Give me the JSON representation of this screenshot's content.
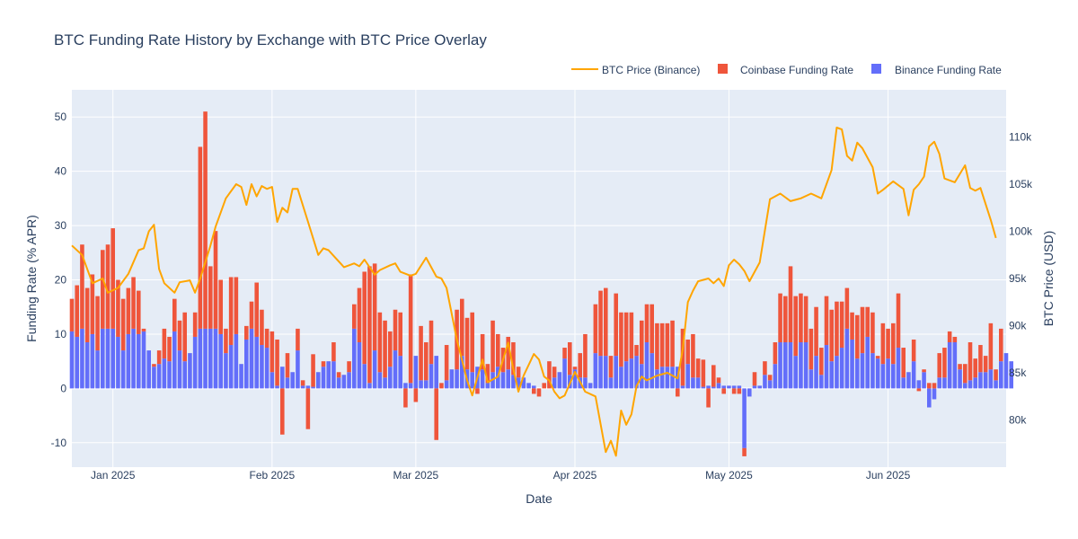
{
  "chart_data": {
    "type": "bar+line",
    "title": "BTC Funding Rate History by Exchange with BTC Price Overlay",
    "xlabel": "Date",
    "ylabel": "Funding Rate (% APR)",
    "y2label": "BTC Price (USD)",
    "x_range": [
      "2024-12-24",
      "2025-06-24"
    ],
    "y_range": [
      -14.5,
      55
    ],
    "y2_range": [
      75000,
      115000
    ],
    "x_ticks": [
      {
        "date": "2025-01-01",
        "label": "Jan 2025"
      },
      {
        "date": "2025-02-01",
        "label": "Feb 2025"
      },
      {
        "date": "2025-03-01",
        "label": "Mar 2025"
      },
      {
        "date": "2025-04-01",
        "label": "Apr 2025"
      },
      {
        "date": "2025-05-01",
        "label": "May 2025"
      },
      {
        "date": "2025-06-01",
        "label": "Jun 2025"
      }
    ],
    "y_ticks": [
      -10,
      0,
      10,
      20,
      30,
      40,
      50
    ],
    "y2_ticks": [
      {
        "value": 80000,
        "label": "80k"
      },
      {
        "value": 85000,
        "label": "85k"
      },
      {
        "value": 90000,
        "label": "90k"
      },
      {
        "value": 95000,
        "label": "95k"
      },
      {
        "value": 100000,
        "label": "100k"
      },
      {
        "value": 105000,
        "label": "105k"
      },
      {
        "value": 110000,
        "label": "110k"
      }
    ],
    "grid": true,
    "legend_position": "top-right",
    "bar_mode": "relative",
    "series": [
      {
        "name": "Binance Funding Rate",
        "kind": "bar",
        "color": "#636efa",
        "start_date": "2024-12-24",
        "values": [
          10.5,
          9.5,
          11.0,
          8.5,
          10.0,
          7.0,
          11.0,
          11.0,
          11.0,
          9.5,
          7.0,
          10.0,
          11.0,
          10.0,
          10.5,
          7.0,
          4.0,
          4.5,
          5.5,
          5.0,
          10.5,
          7.0,
          5.0,
          6.5,
          9.5,
          11.0,
          11.0,
          11.0,
          11.0,
          10.0,
          6.5,
          8.0,
          10.0,
          4.5,
          9.0,
          11.0,
          9.5,
          8.0,
          7.5,
          3.0,
          0.5,
          4.0,
          2.0,
          3.0,
          7.0,
          0.5,
          0.5,
          0.3,
          3.0,
          4.0,
          5.0,
          5.0,
          2.0,
          2.5,
          3.0,
          11.0,
          8.5,
          4.5,
          1.0,
          7.0,
          3.0,
          2.0,
          4.0,
          7.0,
          6.0,
          1.0,
          1.0,
          6.0,
          1.5,
          1.5,
          4.5,
          6.0,
          0.0,
          1.5,
          3.5,
          3.5,
          6.0,
          3.5,
          3.0,
          4.0,
          3.5,
          1.0,
          3.0,
          4.0,
          3.0,
          3.5,
          2.5,
          2.0,
          2.0,
          1.0,
          0.5,
          0.0,
          0.0,
          0.0,
          2.0,
          3.0,
          5.5,
          2.5,
          3.5,
          2.0,
          2.0,
          1.0,
          6.5,
          6.0,
          6.0,
          2.0,
          6.0,
          4.0,
          5.0,
          5.5,
          6.0,
          4.5,
          8.5,
          6.5,
          3.5,
          4.0,
          4.0,
          4.0,
          4.0,
          0.5,
          4.5,
          2.0,
          2.0,
          0.3,
          0.5,
          0.3,
          1.0,
          0.5,
          0.5,
          0.5,
          0.5,
          -11.0,
          -1.5,
          0.5,
          0.5,
          2.5,
          1.5,
          4.5,
          8.5,
          8.5,
          8.5,
          6.0,
          8.5,
          8.5,
          3.5,
          6.0,
          2.5,
          8.0,
          5.0,
          6.0,
          7.5,
          11.0,
          9.0,
          5.5,
          6.5,
          9.5,
          6.5,
          5.5,
          4.5,
          5.5,
          4.5,
          7.5,
          2.0,
          3.0,
          5.0,
          1.5,
          3.0,
          -3.5,
          -2.0,
          2.0,
          2.0,
          8.5,
          8.5,
          3.5,
          1.0,
          1.5,
          2.0,
          3.0,
          3.0,
          3.5,
          1.5,
          5.0,
          6.5,
          5.0
        ],
        "note": "values in % APR"
      },
      {
        "name": "Coinbase Funding Rate",
        "kind": "bar",
        "color": "#ef553b",
        "start_date": "2024-12-24",
        "values": [
          6.0,
          9.5,
          15.5,
          10.0,
          11.0,
          10.0,
          14.5,
          15.5,
          18.5,
          10.5,
          9.5,
          8.5,
          9.5,
          8.0,
          0.5,
          0.0,
          0.5,
          2.5,
          5.5,
          4.5,
          6.0,
          5.5,
          9.0,
          0.0,
          4.5,
          33.5,
          40.0,
          11.5,
          18.0,
          10.0,
          4.5,
          12.5,
          10.5,
          0.0,
          2.5,
          5.0,
          10.0,
          6.5,
          3.5,
          7.5,
          8.5,
          -8.5,
          4.5,
          0.0,
          4.0,
          1.0,
          -7.5,
          6.0,
          0.0,
          1.0,
          0.0,
          3.5,
          1.0,
          0.0,
          2.0,
          4.5,
          10.0,
          17.0,
          21.5,
          16.0,
          11.0,
          10.5,
          6.5,
          7.5,
          8.0,
          -3.5,
          20.0,
          -2.5,
          10.0,
          7.0,
          8.0,
          -9.5,
          1.0,
          6.5,
          0.0,
          11.0,
          10.5,
          9.5,
          11.0,
          -1.0,
          6.5,
          3.5,
          9.5,
          6.0,
          4.5,
          6.0,
          6.0,
          2.0,
          0.0,
          0.0,
          -1.0,
          -1.5,
          1.0,
          5.0,
          2.0,
          0.0,
          2.0,
          6.0,
          0.5,
          4.5,
          8.0,
          0.0,
          9.0,
          12.0,
          12.5,
          4.0,
          11.5,
          10.0,
          9.0,
          8.5,
          2.0,
          8.0,
          7.0,
          9.0,
          8.5,
          8.0,
          8.0,
          8.5,
          -1.5,
          10.5,
          4.5,
          8.0,
          3.5,
          5.0,
          -3.5,
          4.0,
          1.0,
          -1.0,
          0.0,
          -1.0,
          -1.0,
          -1.5,
          0.0,
          2.5,
          0.0,
          2.5,
          1.0,
          4.0,
          9.0,
          8.5,
          14.0,
          11.0,
          9.0,
          8.5,
          7.5,
          9.0,
          5.0,
          9.0,
          9.5,
          10.0,
          8.5,
          7.5,
          5.0,
          8.0,
          8.5,
          5.5,
          7.5,
          0.5,
          7.5,
          5.5,
          7.5,
          10.0,
          5.5,
          0.0,
          4.0,
          -0.5,
          0.5,
          1.0,
          1.0,
          4.5,
          5.5,
          2.0,
          1.0,
          1.0,
          3.5,
          7.0,
          3.5,
          5.0,
          3.0,
          8.5,
          2.0,
          6.0
        ],
        "note": "values in % APR"
      },
      {
        "name": "BTC Price (Binance)",
        "kind": "line",
        "color": "#ffa500",
        "points": [
          {
            "x": "2024-12-24",
            "y": 98500
          },
          {
            "x": "2024-12-26",
            "y": 97500
          },
          {
            "x": "2024-12-28",
            "y": 94500
          },
          {
            "x": "2024-12-30",
            "y": 95000
          },
          {
            "x": "2024-12-31",
            "y": 93500
          },
          {
            "x": "2025-01-02",
            "y": 94000
          },
          {
            "x": "2025-01-04",
            "y": 95500
          },
          {
            "x": "2025-01-06",
            "y": 98000
          },
          {
            "x": "2025-01-07",
            "y": 98200
          },
          {
            "x": "2025-01-08",
            "y": 100000
          },
          {
            "x": "2025-01-09",
            "y": 100700
          },
          {
            "x": "2025-01-10",
            "y": 96000
          },
          {
            "x": "2025-01-11",
            "y": 94500
          },
          {
            "x": "2025-01-13",
            "y": 93500
          },
          {
            "x": "2025-01-14",
            "y": 94600
          },
          {
            "x": "2025-01-16",
            "y": 94800
          },
          {
            "x": "2025-01-17",
            "y": 93500
          },
          {
            "x": "2025-01-18",
            "y": 95000
          },
          {
            "x": "2025-01-20",
            "y": 98500
          },
          {
            "x": "2025-01-21",
            "y": 100500
          },
          {
            "x": "2025-01-23",
            "y": 103500
          },
          {
            "x": "2025-01-25",
            "y": 105000
          },
          {
            "x": "2025-01-26",
            "y": 104700
          },
          {
            "x": "2025-01-27",
            "y": 102800
          },
          {
            "x": "2025-01-28",
            "y": 105000
          },
          {
            "x": "2025-01-29",
            "y": 103700
          },
          {
            "x": "2025-01-30",
            "y": 104800
          },
          {
            "x": "2025-01-31",
            "y": 104500
          },
          {
            "x": "2025-02-01",
            "y": 104700
          },
          {
            "x": "2025-02-02",
            "y": 101000
          },
          {
            "x": "2025-02-03",
            "y": 102500
          },
          {
            "x": "2025-02-04",
            "y": 102000
          },
          {
            "x": "2025-02-05",
            "y": 104500
          },
          {
            "x": "2025-02-06",
            "y": 104500
          },
          {
            "x": "2025-02-08",
            "y": 101000
          },
          {
            "x": "2025-02-10",
            "y": 97500
          },
          {
            "x": "2025-02-11",
            "y": 98200
          },
          {
            "x": "2025-02-12",
            "y": 98000
          },
          {
            "x": "2025-02-13",
            "y": 97400
          },
          {
            "x": "2025-02-15",
            "y": 96200
          },
          {
            "x": "2025-02-17",
            "y": 96600
          },
          {
            "x": "2025-02-18",
            "y": 96300
          },
          {
            "x": "2025-02-19",
            "y": 97000
          },
          {
            "x": "2025-02-21",
            "y": 95400
          },
          {
            "x": "2025-02-22",
            "y": 95900
          },
          {
            "x": "2025-02-24",
            "y": 96400
          },
          {
            "x": "2025-02-25",
            "y": 96600
          },
          {
            "x": "2025-02-26",
            "y": 95700
          },
          {
            "x": "2025-02-28",
            "y": 95300
          },
          {
            "x": "2025-03-01",
            "y": 95500
          },
          {
            "x": "2025-03-03",
            "y": 97200
          },
          {
            "x": "2025-03-05",
            "y": 95200
          },
          {
            "x": "2025-03-06",
            "y": 95000
          },
          {
            "x": "2025-03-07",
            "y": 94000
          },
          {
            "x": "2025-03-09",
            "y": 88500
          },
          {
            "x": "2025-03-11",
            "y": 84200
          },
          {
            "x": "2025-03-12",
            "y": 82600
          },
          {
            "x": "2025-03-14",
            "y": 86400
          },
          {
            "x": "2025-03-15",
            "y": 84000
          },
          {
            "x": "2025-03-17",
            "y": 84600
          },
          {
            "x": "2025-03-19",
            "y": 88200
          },
          {
            "x": "2025-03-20",
            "y": 85400
          },
          {
            "x": "2025-03-21",
            "y": 83000
          },
          {
            "x": "2025-03-22",
            "y": 84700
          },
          {
            "x": "2025-03-24",
            "y": 87000
          },
          {
            "x": "2025-03-25",
            "y": 86400
          },
          {
            "x": "2025-03-26",
            "y": 84600
          },
          {
            "x": "2025-03-27",
            "y": 84200
          },
          {
            "x": "2025-03-28",
            "y": 83000
          },
          {
            "x": "2025-03-29",
            "y": 82300
          },
          {
            "x": "2025-03-30",
            "y": 82600
          },
          {
            "x": "2025-04-01",
            "y": 85100
          },
          {
            "x": "2025-04-03",
            "y": 83000
          },
          {
            "x": "2025-04-05",
            "y": 82500
          },
          {
            "x": "2025-04-07",
            "y": 76600
          },
          {
            "x": "2025-04-08",
            "y": 77800
          },
          {
            "x": "2025-04-09",
            "y": 76200
          },
          {
            "x": "2025-04-10",
            "y": 81000
          },
          {
            "x": "2025-04-11",
            "y": 79500
          },
          {
            "x": "2025-04-12",
            "y": 80600
          },
          {
            "x": "2025-04-13",
            "y": 83600
          },
          {
            "x": "2025-04-14",
            "y": 84600
          },
          {
            "x": "2025-04-15",
            "y": 84200
          },
          {
            "x": "2025-04-17",
            "y": 84700
          },
          {
            "x": "2025-04-19",
            "y": 85000
          },
          {
            "x": "2025-04-21",
            "y": 84400
          },
          {
            "x": "2025-04-22",
            "y": 87500
          },
          {
            "x": "2025-04-23",
            "y": 92500
          },
          {
            "x": "2025-04-24",
            "y": 93700
          },
          {
            "x": "2025-04-25",
            "y": 94700
          },
          {
            "x": "2025-04-27",
            "y": 95000
          },
          {
            "x": "2025-04-28",
            "y": 94500
          },
          {
            "x": "2025-04-29",
            "y": 95000
          },
          {
            "x": "2025-04-30",
            "y": 94200
          },
          {
            "x": "2025-05-01",
            "y": 96400
          },
          {
            "x": "2025-05-02",
            "y": 97000
          },
          {
            "x": "2025-05-03",
            "y": 96500
          },
          {
            "x": "2025-05-04",
            "y": 95800
          },
          {
            "x": "2025-05-05",
            "y": 94700
          },
          {
            "x": "2025-05-07",
            "y": 96700
          },
          {
            "x": "2025-05-09",
            "y": 103400
          },
          {
            "x": "2025-05-11",
            "y": 104000
          },
          {
            "x": "2025-05-13",
            "y": 103200
          },
          {
            "x": "2025-05-15",
            "y": 103500
          },
          {
            "x": "2025-05-17",
            "y": 104000
          },
          {
            "x": "2025-05-19",
            "y": 103500
          },
          {
            "x": "2025-05-21",
            "y": 106500
          },
          {
            "x": "2025-05-22",
            "y": 111000
          },
          {
            "x": "2025-05-23",
            "y": 110800
          },
          {
            "x": "2025-05-24",
            "y": 108000
          },
          {
            "x": "2025-05-25",
            "y": 107500
          },
          {
            "x": "2025-05-26",
            "y": 109400
          },
          {
            "x": "2025-05-27",
            "y": 108800
          },
          {
            "x": "2025-05-29",
            "y": 106800
          },
          {
            "x": "2025-05-30",
            "y": 104000
          },
          {
            "x": "2025-05-31",
            "y": 104400
          },
          {
            "x": "2025-06-02",
            "y": 105300
          },
          {
            "x": "2025-06-04",
            "y": 104500
          },
          {
            "x": "2025-06-05",
            "y": 101700
          },
          {
            "x": "2025-06-06",
            "y": 104400
          },
          {
            "x": "2025-06-07",
            "y": 105000
          },
          {
            "x": "2025-06-08",
            "y": 105800
          },
          {
            "x": "2025-06-09",
            "y": 109000
          },
          {
            "x": "2025-06-10",
            "y": 109500
          },
          {
            "x": "2025-06-11",
            "y": 108200
          },
          {
            "x": "2025-06-12",
            "y": 105600
          },
          {
            "x": "2025-06-14",
            "y": 105200
          },
          {
            "x": "2025-06-16",
            "y": 107000
          },
          {
            "x": "2025-06-17",
            "y": 104600
          },
          {
            "x": "2025-06-18",
            "y": 104300
          },
          {
            "x": "2025-06-19",
            "y": 104600
          },
          {
            "x": "2025-06-21",
            "y": 101200
          },
          {
            "x": "2025-06-22",
            "y": 99300
          }
        ],
        "note": "values in USD"
      }
    ]
  }
}
